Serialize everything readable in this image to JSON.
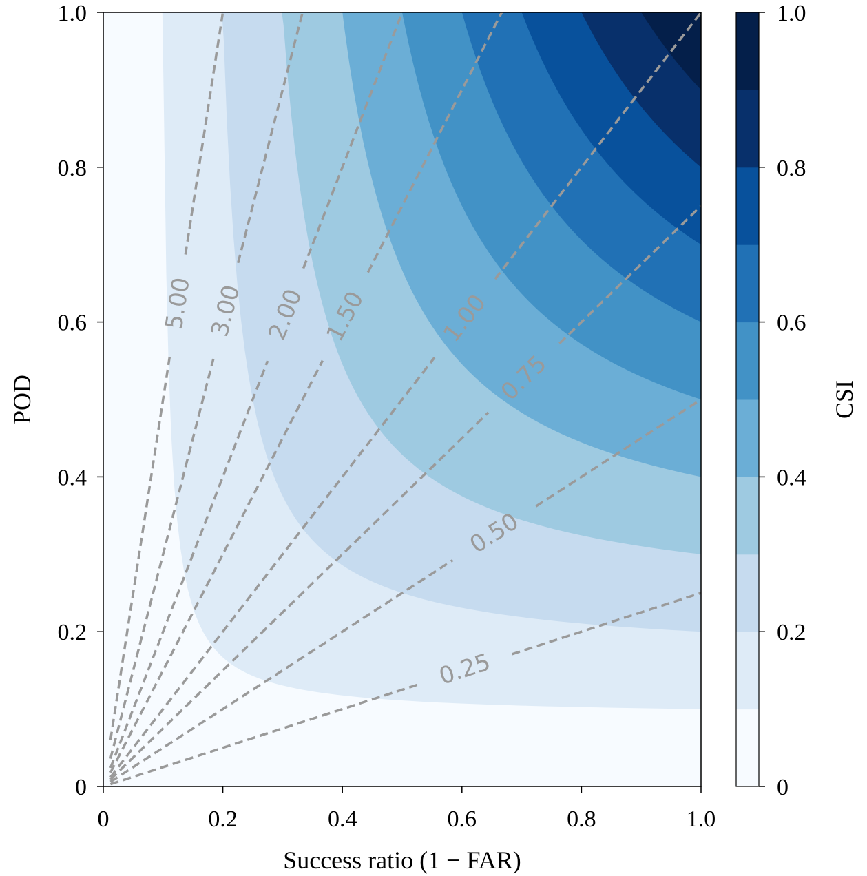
{
  "chart_data": {
    "type": "heatmap",
    "title": "",
    "xlabel": "Success ratio (1 − FAR)",
    "ylabel": "POD",
    "xlim": [
      0,
      1
    ],
    "ylim": [
      0,
      1
    ],
    "x_ticks": [
      "0",
      "0.2",
      "0.4",
      "0.6",
      "0.8",
      "1.0"
    ],
    "y_ticks": [
      "0",
      "0.2",
      "0.4",
      "0.6",
      "0.8",
      "1.0"
    ],
    "grid": false,
    "csi_levels": [
      0.0,
      0.1,
      0.2,
      0.3,
      0.4,
      0.5,
      0.6,
      0.7,
      0.8,
      0.9,
      1.0
    ],
    "csi_colors": [
      "#f7fbff",
      "#deebf7",
      "#c6dbef",
      "#9ecae1",
      "#6baed6",
      "#4292c6",
      "#2171b5",
      "#08519c",
      "#08306b",
      "#041f4a"
    ],
    "colorbar": {
      "label": "CSI",
      "ticks": [
        "0",
        "0.2",
        "0.4",
        "0.6",
        "0.8",
        "1.0"
      ],
      "placement": "right"
    },
    "bias_lines": {
      "color": "#9a9a9a",
      "style": "dashed",
      "values": [
        0.25,
        0.5,
        0.75,
        1.0,
        1.5,
        2.0,
        3.0,
        5.0
      ],
      "labels": [
        "0.25",
        "0.50",
        "0.75",
        "1.00",
        "1.50",
        "2.00",
        "3.00",
        "5.00"
      ]
    }
  }
}
